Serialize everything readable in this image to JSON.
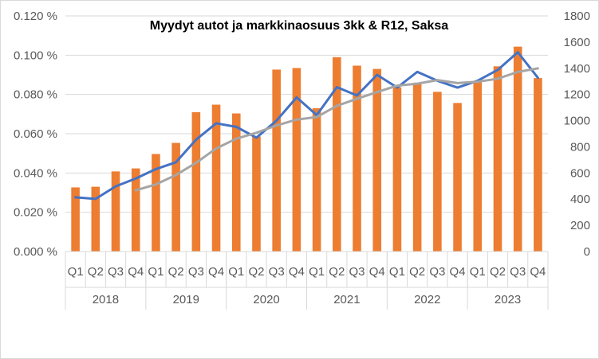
{
  "chart_data": {
    "type": "bar",
    "title": "Myydyt autot ja markkinaosuus 3kk & R12, Saksa",
    "xlabel": "",
    "ylabel": "",
    "years": [
      "2018",
      "2019",
      "2020",
      "2021",
      "2022",
      "2023"
    ],
    "quarters": [
      "Q1",
      "Q2",
      "Q3",
      "Q4"
    ],
    "categories": [
      "2018 Q1",
      "2018 Q2",
      "2018 Q3",
      "2018 Q4",
      "2019 Q1",
      "2019 Q2",
      "2019 Q3",
      "2019 Q4",
      "2020 Q1",
      "2020 Q2",
      "2020 Q3",
      "2020 Q4",
      "2021 Q1",
      "2021 Q2",
      "2021 Q3",
      "2021 Q4",
      "2022 Q1",
      "2022 Q2",
      "2022 Q3",
      "2022 Q4",
      "2023 Q1",
      "2023 Q2",
      "2023 Q3",
      "2023 Q4"
    ],
    "y_left": {
      "ylim": [
        0,
        0.12
      ],
      "ticks": [
        "0.000 %",
        "0.020 %",
        "0.040 %",
        "0.060 %",
        "0.080 %",
        "0.100 %",
        "0.120 %"
      ]
    },
    "y_right": {
      "ylim": [
        0,
        1800
      ],
      "ticks": [
        "0",
        "200",
        "400",
        "600",
        "800",
        "1000",
        "1200",
        "1400",
        "1600",
        "1800"
      ]
    },
    "grid": true,
    "legend": "none",
    "series": [
      {
        "type": "bar",
        "axis": "right",
        "color": "#ed7d31",
        "values": [
          490,
          495,
          612,
          635,
          745,
          830,
          1065,
          1122,
          1055,
          880,
          1390,
          1402,
          1095,
          1485,
          1420,
          1395,
          1255,
          1290,
          1220,
          1135,
          1295,
          1415,
          1565,
          1325
        ]
      },
      {
        "type": "line",
        "axis": "left",
        "color": "#4472c4",
        "values": [
          0.0276,
          0.0268,
          0.0332,
          0.0372,
          0.042,
          0.0455,
          0.057,
          0.0653,
          0.0635,
          0.058,
          0.0667,
          0.0785,
          0.0695,
          0.0837,
          0.0795,
          0.09,
          0.0835,
          0.0915,
          0.087,
          0.0835,
          0.087,
          0.0925,
          0.1015,
          0.0885
        ]
      },
      {
        "type": "line",
        "axis": "left",
        "color": "#a5a5a5",
        "values": [
          null,
          null,
          null,
          0.0312,
          0.0342,
          0.039,
          0.0452,
          0.0525,
          0.0575,
          0.0605,
          0.0642,
          0.0672,
          0.0685,
          0.0742,
          0.0778,
          0.0812,
          0.0845,
          0.0855,
          0.0873,
          0.0858,
          0.0865,
          0.088,
          0.0915,
          0.0933
        ]
      }
    ]
  }
}
